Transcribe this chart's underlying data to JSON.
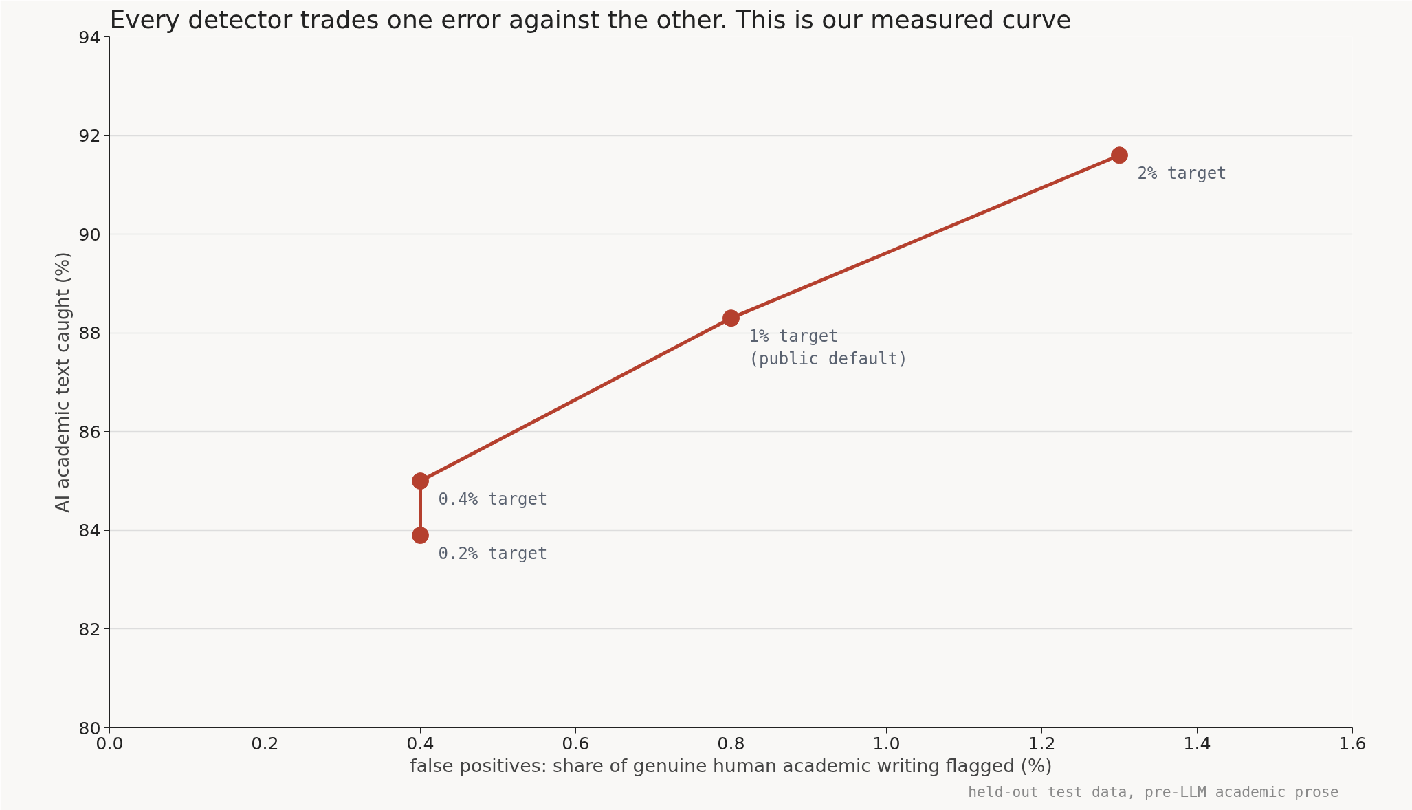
{
  "chart_data": {
    "type": "line",
    "title": "Every detector trades one error against the other. This is our measured curve",
    "xlabel": "false positives: share of genuine human academic writing flagged (%)",
    "ylabel": "AI academic text caught (%)",
    "x": [
      0.4,
      0.4,
      0.8,
      1.3
    ],
    "values": [
      83.9,
      85.0,
      88.3,
      91.6
    ],
    "color": "#b5402e",
    "marker": "circle",
    "line_style": "solid",
    "xlim": [
      0,
      1.6
    ],
    "ylim": [
      80,
      94
    ],
    "xticks": [
      {
        "value": 0,
        "label": "0.0"
      },
      0.2,
      0.4,
      0.6,
      0.8,
      {
        "value": 1,
        "label": "1.0"
      },
      1.2,
      1.4,
      1.6
    ],
    "yticks": [
      80,
      82,
      84,
      86,
      88,
      90,
      92,
      94
    ],
    "grid": "y",
    "annotations": [
      {
        "text": "0.2% target",
        "x": 0.4,
        "y": 83.9
      },
      {
        "text": "0.4% target",
        "x": 0.4,
        "y": 85.0
      },
      {
        "text": "1% target\n(public default)",
        "x": 0.8,
        "y": 88.3
      },
      {
        "text": "2% target",
        "x": 1.3,
        "y": 91.6
      },
      "held-out test data, pre-LLM academic prose"
    ]
  }
}
